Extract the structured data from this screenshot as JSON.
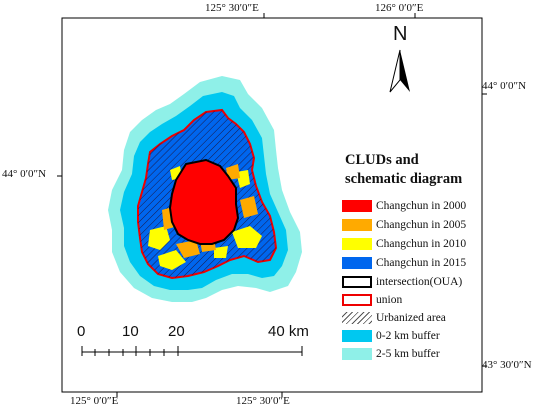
{
  "coords": {
    "top": [
      "125° 30′0″E",
      "126° 0′0″E"
    ],
    "bottom": [
      "125° 0′0″E",
      "125° 30′0″E"
    ],
    "right": [
      "44° 0′0″N",
      "43° 30′0″N"
    ],
    "left": [
      "44° 0′0″N"
    ]
  },
  "north": "N",
  "legend": {
    "title_line1": "CLUDs and",
    "title_line2": "schematic diagram",
    "items": [
      {
        "label": "Changchun in 2000",
        "type": "fill",
        "color": "#ff0000"
      },
      {
        "label": "Changchun in 2005",
        "type": "fill",
        "color": "#ffaa00"
      },
      {
        "label": "Changchun in 2010",
        "type": "fill",
        "color": "#ffff00"
      },
      {
        "label": "Changchun in 2015",
        "type": "fill",
        "color": "#0066ee"
      },
      {
        "label": "intersection(OUA)",
        "type": "outline",
        "color": "#000000"
      },
      {
        "label": "union",
        "type": "outline",
        "color": "#ee0000"
      },
      {
        "label": "Urbanized area",
        "type": "hatch",
        "color": "#555555"
      },
      {
        "label": "0-2 km buffer",
        "type": "fill",
        "color": "#00c8f0"
      },
      {
        "label": "2-5 km buffer",
        "type": "fill",
        "color": "#8ff0e8"
      }
    ]
  },
  "scale": {
    "labels": [
      "0",
      "10",
      "20",
      "40 km"
    ]
  },
  "colors": {
    "buffer_outer": "#8ff0e8",
    "buffer_inner": "#00c8f0",
    "y2000": "#ff0000",
    "y2005": "#ffaa00",
    "y2010": "#ffff00",
    "y2015": "#0066ee",
    "union": "#ee0000",
    "intersection": "#000000"
  }
}
